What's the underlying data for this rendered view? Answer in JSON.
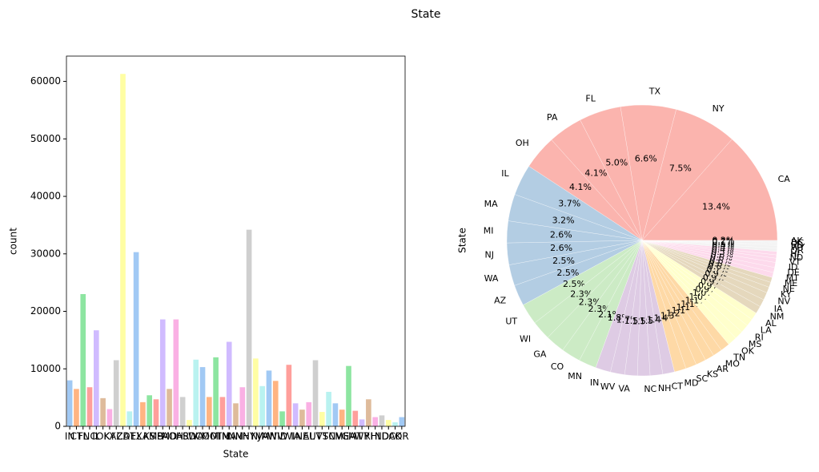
{
  "title": "State",
  "chart_data": [
    {
      "type": "bar",
      "xlabel": "State",
      "ylabel": "count",
      "categories": [
        "IN",
        "CT",
        "FL",
        "NC",
        "IL",
        "OK",
        "KY",
        "AZ",
        "CA",
        "DE",
        "TX",
        "LA",
        "KS",
        "MS",
        "PA",
        "MD",
        "OH",
        "AR",
        "SD",
        "WA",
        "CO",
        "MO",
        "MI",
        "TN",
        "MA",
        "NM",
        "NH",
        "NY",
        "NJ",
        "VA",
        "MN",
        "WV",
        "ID",
        "WI",
        "IA",
        "NE",
        "AL",
        "UT",
        "VT",
        "SC",
        "NV",
        "ME",
        "GA",
        "MT",
        "WY",
        "RI",
        "HI",
        "ND",
        "DC",
        "AK",
        "OR"
      ],
      "values": [
        8000,
        6500,
        23000,
        6800,
        16700,
        4900,
        3000,
        11500,
        61300,
        2600,
        30300,
        4200,
        5400,
        4700,
        18600,
        6500,
        18600,
        5100,
        1100,
        11600,
        10300,
        5100,
        12000,
        5100,
        14700,
        4000,
        6800,
        34200,
        11800,
        7000,
        9700,
        7900,
        2600,
        10700,
        4000,
        2900,
        4200,
        11500,
        2500,
        6000,
        4000,
        2900,
        10500,
        2700,
        1200,
        4700,
        1600,
        1900,
        1100,
        700,
        1600
      ],
      "colors": [
        "#a1c9f4",
        "#ffb482",
        "#8de5a1",
        "#ff9f9b",
        "#d0bbff",
        "#debb9b",
        "#fab0e4",
        "#cfcfcf",
        "#fffea3",
        "#b9f2f0"
      ],
      "ylim": [
        0,
        64400
      ],
      "yticks": [
        0,
        10000,
        20000,
        30000,
        40000,
        50000,
        60000
      ]
    },
    {
      "type": "pie",
      "ylabel": "State",
      "categories": [
        "CA",
        "NY",
        "TX",
        "FL",
        "PA",
        "OH",
        "IL",
        "MA",
        "MI",
        "NJ",
        "WA",
        "AZ",
        "UT",
        "WI",
        "GA",
        "CO",
        "MN",
        "IN",
        "WV",
        "VA",
        "NC",
        "NH",
        "CT",
        "MD",
        "SC",
        "KS",
        "AR",
        "MO",
        "TN",
        "OK",
        "MS",
        "RI",
        "LA",
        "AL",
        "NM",
        "IA",
        "NV",
        "KY",
        "NE",
        "ME",
        "MT",
        "DE",
        "ID",
        "VT",
        "ND",
        "HI",
        "OR",
        "WY",
        "SD",
        "DC",
        "AK"
      ],
      "values": [
        13.4,
        7.5,
        6.6,
        5.0,
        4.1,
        4.1,
        3.7,
        3.2,
        2.6,
        2.6,
        2.5,
        2.5,
        2.5,
        2.3,
        2.3,
        2.3,
        2.1,
        1.8,
        1.7,
        1.5,
        1.5,
        1.5,
        1.4,
        1.4,
        1.3,
        1.2,
        1.1,
        1.1,
        1.1,
        1.1,
        1.0,
        1.0,
        0.9,
        0.9,
        0.9,
        0.9,
        0.9,
        0.7,
        0.6,
        0.6,
        0.6,
        0.6,
        0.6,
        0.5,
        0.4,
        0.4,
        0.4,
        0.3,
        0.2,
        0.2,
        0.2
      ],
      "value_labels": [
        "13.4%",
        "7.5%",
        "6.6%",
        "5.0%",
        "4.1%",
        "4.1%",
        "3.7%",
        "3.2%",
        "2.6%",
        "2.6%",
        "2.5%",
        "2.5%",
        "2.5%",
        "2.3%",
        "2.3%",
        "2.3%",
        "2.1%",
        "1.8%",
        "1.7%",
        "1.5%",
        "1.5%",
        "1.5%",
        "1.4%",
        "1.4%",
        "1.3%",
        "1.2%",
        "1.1%",
        "1.1%",
        "1.1%",
        "1.1%",
        "1.0%",
        "1.0%",
        "0.9%",
        "0.9%",
        "0.9%",
        "0.9%",
        "0.9%",
        "0.7%",
        "0.6%",
        "0.6%",
        "0.6%",
        "0.6%",
        "0.6%",
        "0.5%",
        "0.4%",
        "0.4%",
        "0.4%",
        "0.3%",
        "0.2%",
        "0.2%",
        "0.2%"
      ],
      "colors": [
        "#fbb4ae",
        "#b3cde3",
        "#ccebc5",
        "#decbe4",
        "#fed9a6",
        "#ffffcc",
        "#e5d8bd",
        "#fddaec",
        "#f2f2f2"
      ]
    }
  ]
}
